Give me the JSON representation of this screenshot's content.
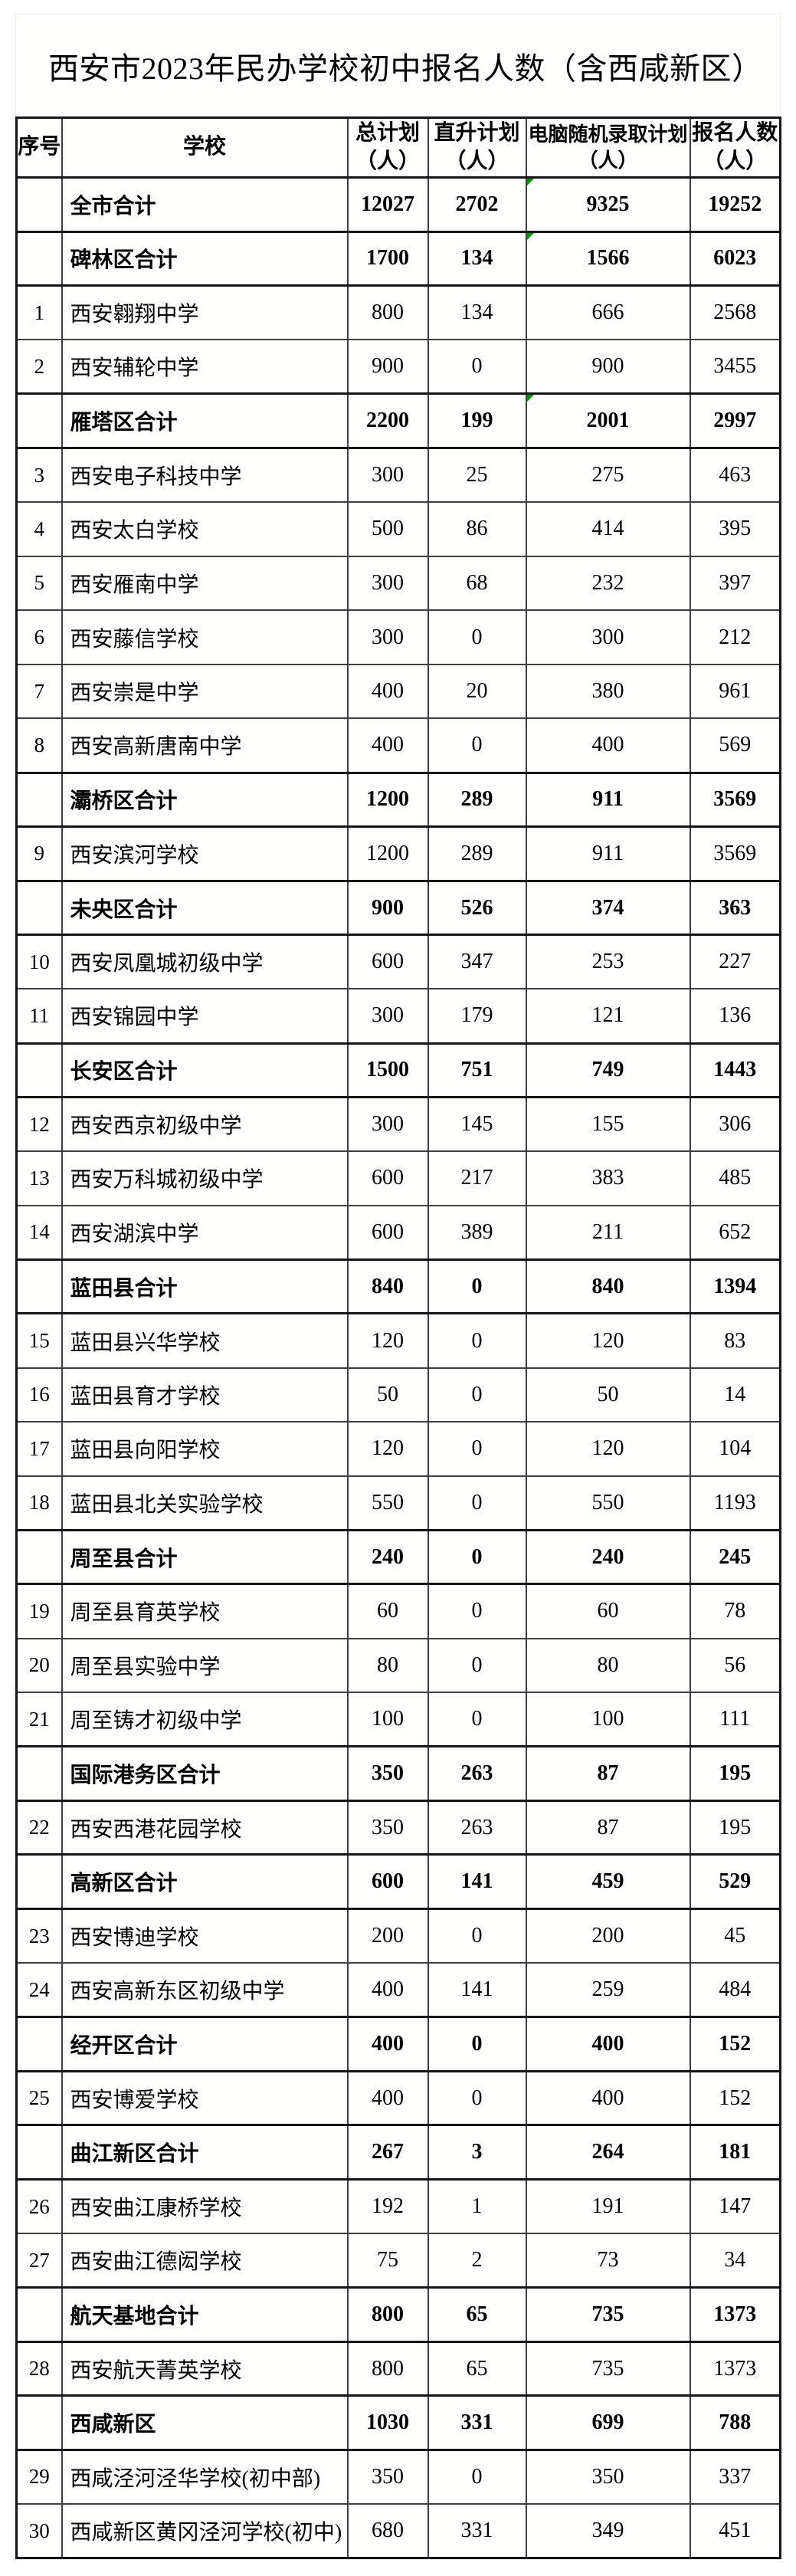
{
  "page": {
    "title": "西安市2023年民办学校初中报名人数（含西咸新区）"
  },
  "colors": {
    "flag_green": "#009600",
    "border_dark": "#151515",
    "text": "#000000",
    "background": "#ffffff"
  },
  "table": {
    "headers": {
      "index": "序号",
      "school": "学校",
      "total_plan": "总计划\n（人）",
      "direct_plan": "直升计划\n（人）",
      "computer_plan": "电脑随机录取计划\n（人）",
      "applicants": "报名人数\n（人）"
    },
    "rows": [
      {
        "type": "total",
        "index": "",
        "school": "全市合计",
        "total_plan": 12027,
        "direct_plan": 2702,
        "computer_plan": 9325,
        "applicants": 19252,
        "flag": true
      },
      {
        "type": "total",
        "index": "",
        "school": "碑林区合计",
        "total_plan": 1700,
        "direct_plan": 134,
        "computer_plan": 1566,
        "applicants": 6023,
        "flag": true
      },
      {
        "type": "school",
        "index": "1",
        "school": "西安翱翔中学",
        "total_plan": 800,
        "direct_plan": 134,
        "computer_plan": 666,
        "applicants": 2568,
        "flag": false
      },
      {
        "type": "school",
        "index": "2",
        "school": "西安辅轮中学",
        "total_plan": 900,
        "direct_plan": 0,
        "computer_plan": 900,
        "applicants": 3455,
        "flag": false
      },
      {
        "type": "total",
        "index": "",
        "school": "雁塔区合计",
        "total_plan": 2200,
        "direct_plan": 199,
        "computer_plan": 2001,
        "applicants": 2997,
        "flag": true
      },
      {
        "type": "school",
        "index": "3",
        "school": "西安电子科技中学",
        "total_plan": 300,
        "direct_plan": 25,
        "computer_plan": 275,
        "applicants": 463,
        "flag": false
      },
      {
        "type": "school",
        "index": "4",
        "school": "西安太白学校",
        "total_plan": 500,
        "direct_plan": 86,
        "computer_plan": 414,
        "applicants": 395,
        "flag": false
      },
      {
        "type": "school",
        "index": "5",
        "school": "西安雁南中学",
        "total_plan": 300,
        "direct_plan": 68,
        "computer_plan": 232,
        "applicants": 397,
        "flag": false
      },
      {
        "type": "school",
        "index": "6",
        "school": "西安藤信学校",
        "total_plan": 300,
        "direct_plan": 0,
        "computer_plan": 300,
        "applicants": 212,
        "flag": false
      },
      {
        "type": "school",
        "index": "7",
        "school": "西安崇是中学",
        "total_plan": 400,
        "direct_plan": 20,
        "computer_plan": 380,
        "applicants": 961,
        "flag": false
      },
      {
        "type": "school",
        "index": "8",
        "school": "西安高新唐南中学",
        "total_plan": 400,
        "direct_plan": 0,
        "computer_plan": 400,
        "applicants": 569,
        "flag": false
      },
      {
        "type": "total",
        "index": "",
        "school": "灞桥区合计",
        "total_plan": 1200,
        "direct_plan": 289,
        "computer_plan": 911,
        "applicants": 3569,
        "flag": false
      },
      {
        "type": "school",
        "index": "9",
        "school": "西安滨河学校",
        "total_plan": 1200,
        "direct_plan": 289,
        "computer_plan": 911,
        "applicants": 3569,
        "flag": false
      },
      {
        "type": "total",
        "index": "",
        "school": "未央区合计",
        "total_plan": 900,
        "direct_plan": 526,
        "computer_plan": 374,
        "applicants": 363,
        "flag": false
      },
      {
        "type": "school",
        "index": "10",
        "school": "西安凤凰城初级中学",
        "total_plan": 600,
        "direct_plan": 347,
        "computer_plan": 253,
        "applicants": 227,
        "flag": false
      },
      {
        "type": "school",
        "index": "11",
        "school": "西安锦园中学",
        "total_plan": 300,
        "direct_plan": 179,
        "computer_plan": 121,
        "applicants": 136,
        "flag": false
      },
      {
        "type": "total",
        "index": "",
        "school": "长安区合计",
        "total_plan": 1500,
        "direct_plan": 751,
        "computer_plan": 749,
        "applicants": 1443,
        "flag": false
      },
      {
        "type": "school",
        "index": "12",
        "school": "西安西京初级中学",
        "total_plan": 300,
        "direct_plan": 145,
        "computer_plan": 155,
        "applicants": 306,
        "flag": false
      },
      {
        "type": "school",
        "index": "13",
        "school": "西安万科城初级中学",
        "total_plan": 600,
        "direct_plan": 217,
        "computer_plan": 383,
        "applicants": 485,
        "flag": false
      },
      {
        "type": "school",
        "index": "14",
        "school": "西安湖滨中学",
        "total_plan": 600,
        "direct_plan": 389,
        "computer_plan": 211,
        "applicants": 652,
        "flag": false
      },
      {
        "type": "total",
        "index": "",
        "school": "蓝田县合计",
        "total_plan": 840,
        "direct_plan": 0,
        "computer_plan": 840,
        "applicants": 1394,
        "flag": false
      },
      {
        "type": "school",
        "index": "15",
        "school": "蓝田县兴华学校",
        "total_plan": 120,
        "direct_plan": 0,
        "computer_plan": 120,
        "applicants": 83,
        "flag": false
      },
      {
        "type": "school",
        "index": "16",
        "school": "蓝田县育才学校",
        "total_plan": 50,
        "direct_plan": 0,
        "computer_plan": 50,
        "applicants": 14,
        "flag": false
      },
      {
        "type": "school",
        "index": "17",
        "school": "蓝田县向阳学校",
        "total_plan": 120,
        "direct_plan": 0,
        "computer_plan": 120,
        "applicants": 104,
        "flag": false
      },
      {
        "type": "school",
        "index": "18",
        "school": "蓝田县北关实验学校",
        "total_plan": 550,
        "direct_plan": 0,
        "computer_plan": 550,
        "applicants": 1193,
        "flag": false
      },
      {
        "type": "total",
        "index": "",
        "school": "周至县合计",
        "total_plan": 240,
        "direct_plan": 0,
        "computer_plan": 240,
        "applicants": 245,
        "flag": false
      },
      {
        "type": "school",
        "index": "19",
        "school": "周至县育英学校",
        "total_plan": 60,
        "direct_plan": 0,
        "computer_plan": 60,
        "applicants": 78,
        "flag": false
      },
      {
        "type": "school",
        "index": "20",
        "school": "周至县实验中学",
        "total_plan": 80,
        "direct_plan": 0,
        "computer_plan": 80,
        "applicants": 56,
        "flag": false
      },
      {
        "type": "school",
        "index": "21",
        "school": "周至铸才初级中学",
        "total_plan": 100,
        "direct_plan": 0,
        "computer_plan": 100,
        "applicants": 111,
        "flag": false
      },
      {
        "type": "total",
        "index": "",
        "school": "国际港务区合计",
        "total_plan": 350,
        "direct_plan": 263,
        "computer_plan": 87,
        "applicants": 195,
        "flag": false
      },
      {
        "type": "school",
        "index": "22",
        "school": "西安西港花园学校",
        "total_plan": 350,
        "direct_plan": 263,
        "computer_plan": 87,
        "applicants": 195,
        "flag": false
      },
      {
        "type": "total",
        "index": "",
        "school": "高新区合计",
        "total_plan": 600,
        "direct_plan": 141,
        "computer_plan": 459,
        "applicants": 529,
        "flag": false
      },
      {
        "type": "school",
        "index": "23",
        "school": "西安博迪学校",
        "total_plan": 200,
        "direct_plan": 0,
        "computer_plan": 200,
        "applicants": 45,
        "flag": false
      },
      {
        "type": "school",
        "index": "24",
        "school": "西安高新东区初级中学",
        "total_plan": 400,
        "direct_plan": 141,
        "computer_plan": 259,
        "applicants": 484,
        "flag": false
      },
      {
        "type": "total",
        "index": "",
        "school": "经开区合计",
        "total_plan": 400,
        "direct_plan": 0,
        "computer_plan": 400,
        "applicants": 152,
        "flag": false
      },
      {
        "type": "school",
        "index": "25",
        "school": "西安博爱学校",
        "total_plan": 400,
        "direct_plan": 0,
        "computer_plan": 400,
        "applicants": 152,
        "flag": false
      },
      {
        "type": "total",
        "index": "",
        "school": "曲江新区合计",
        "total_plan": 267,
        "direct_plan": 3,
        "computer_plan": 264,
        "applicants": 181,
        "flag": false
      },
      {
        "type": "school",
        "index": "26",
        "school": "西安曲江康桥学校",
        "total_plan": 192,
        "direct_plan": 1,
        "computer_plan": 191,
        "applicants": 147,
        "flag": false
      },
      {
        "type": "school",
        "index": "27",
        "school": "西安曲江德闳学校",
        "total_plan": 75,
        "direct_plan": 2,
        "computer_plan": 73,
        "applicants": 34,
        "flag": false
      },
      {
        "type": "total",
        "index": "",
        "school": "航天基地合计",
        "total_plan": 800,
        "direct_plan": 65,
        "computer_plan": 735,
        "applicants": 1373,
        "flag": false
      },
      {
        "type": "school",
        "index": "28",
        "school": "西安航天菁英学校",
        "total_plan": 800,
        "direct_plan": 65,
        "computer_plan": 735,
        "applicants": 1373,
        "flag": false
      },
      {
        "type": "total",
        "index": "",
        "school": "西咸新区",
        "total_plan": 1030,
        "direct_plan": 331,
        "computer_plan": 699,
        "applicants": 788,
        "flag": false
      },
      {
        "type": "school",
        "index": "29",
        "school": "西咸泾河泾华学校(初中部)",
        "total_plan": 350,
        "direct_plan": 0,
        "computer_plan": 350,
        "applicants": 337,
        "flag": false
      },
      {
        "type": "school",
        "index": "30",
        "school": "西咸新区黄冈泾河学校(初中)",
        "total_plan": 680,
        "direct_plan": 331,
        "computer_plan": 349,
        "applicants": 451,
        "flag": false
      }
    ]
  }
}
